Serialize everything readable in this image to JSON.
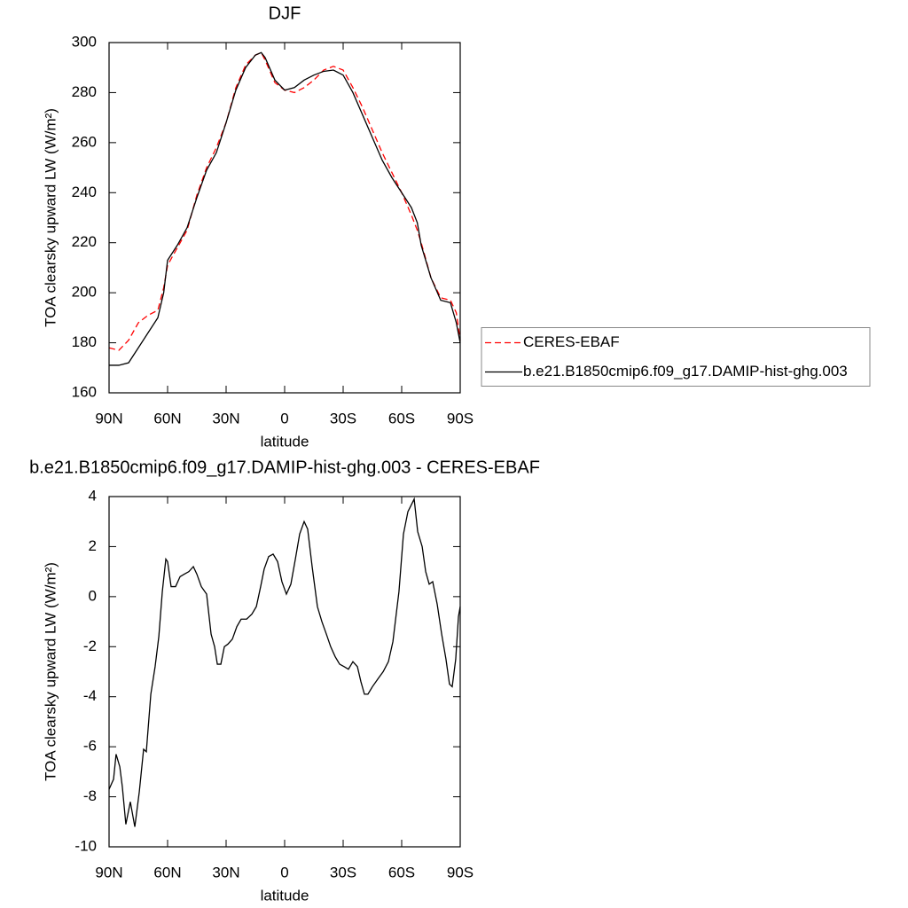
{
  "chart_data": [
    {
      "type": "line",
      "title": "DJF",
      "xlabel": "latitude",
      "ylabel": "TOA clearsky upward LW (W/m²)",
      "xlim": [
        90,
        -90
      ],
      "xticks": [
        {
          "value": 90,
          "label": "90N"
        },
        {
          "value": 60,
          "label": "60N"
        },
        {
          "value": 30,
          "label": "30N"
        },
        0,
        {
          "value": -30,
          "label": "30S"
        },
        {
          "value": -60,
          "label": "60S"
        },
        {
          "value": -90,
          "label": "90S"
        }
      ],
      "ylim": [
        160,
        300
      ],
      "yticks": [
        160,
        180,
        200,
        220,
        240,
        260,
        280,
        300
      ],
      "legend": "right",
      "x": [
        90,
        85,
        80,
        75,
        70,
        65,
        62,
        60,
        55,
        50,
        45,
        40,
        35,
        30,
        25,
        20,
        15,
        12,
        10,
        5,
        0,
        -5,
        -10,
        -15,
        -20,
        -25,
        -30,
        -35,
        -40,
        -45,
        -50,
        -55,
        -60,
        -65,
        -68,
        -70,
        -75,
        -80,
        -85,
        -88,
        -90
      ],
      "series": [
        {
          "name": "CERES-EBAF",
          "color": "#ff0000",
          "linestyle": "dashed",
          "values": [
            178,
            177,
            181,
            188,
            191,
            193,
            202,
            211,
            218,
            225,
            239,
            250,
            258,
            268,
            282,
            291,
            295,
            296,
            293,
            284,
            281,
            280,
            282,
            285,
            289,
            290.5,
            289,
            282,
            274,
            265,
            256,
            248,
            240,
            231,
            225,
            220,
            206,
            198,
            197,
            192,
            181
          ]
        },
        {
          "name": "b.e21.B1850cmip6.f09_g17.DAMIP-hist-ghg.003",
          "color": "#000000",
          "linestyle": "solid",
          "values": [
            171,
            171,
            172,
            178,
            184,
            190,
            200,
            213,
            219,
            226,
            238,
            249,
            256,
            268,
            281,
            290,
            295,
            296,
            294,
            285,
            281,
            282,
            285,
            287,
            288.5,
            289,
            287,
            280,
            271,
            262,
            253,
            246,
            240,
            234,
            228,
            219,
            206,
            197,
            196,
            188,
            180
          ]
        }
      ]
    },
    {
      "type": "line",
      "title": "b.e21.B1850cmip6.f09_g17.DAMIP-hist-ghg.003 - CERES-EBAF",
      "xlabel": "latitude",
      "ylabel": "TOA clearsky upward LW (W/m²)",
      "xlim": [
        90,
        -90
      ],
      "xticks": [
        {
          "value": 90,
          "label": "90N"
        },
        {
          "value": 60,
          "label": "60N"
        },
        {
          "value": 30,
          "label": "30N"
        },
        0,
        {
          "value": -30,
          "label": "30S"
        },
        {
          "value": -60,
          "label": "60S"
        },
        {
          "value": -90,
          "label": "90S"
        }
      ],
      "ylim": [
        -10,
        4
      ],
      "yticks": [
        -10,
        -8,
        -6,
        -4,
        -2,
        0,
        2,
        4
      ],
      "x": [
        90,
        87.7,
        86.4,
        84.5,
        83.2,
        81.4,
        79.1,
        76.8,
        74.5,
        72.3,
        70.9,
        68.6,
        66.4,
        64.5,
        62.7,
        60.9,
        60,
        58.2,
        55.9,
        53.6,
        51.4,
        49.1,
        46.8,
        45,
        42.7,
        40,
        37.7,
        35.9,
        34.5,
        32.7,
        30.9,
        29.1,
        26.8,
        24.5,
        22.3,
        19.5,
        16.8,
        14.5,
        12.3,
        10.5,
        8.2,
        5.9,
        3.6,
        1.4,
        -0.9,
        -3.2,
        -5.5,
        -7.7,
        -10,
        -11.8,
        -14.1,
        -16.8,
        -19.1,
        -21.4,
        -23.6,
        -25.9,
        -28.2,
        -30.5,
        -32.7,
        -35,
        -37.3,
        -39.1,
        -40.9,
        -42.7,
        -45,
        -47.7,
        -50.5,
        -53.2,
        -55.5,
        -58.6,
        -60.9,
        -63.2,
        -64.5,
        -66.4,
        -68.2,
        -70.5,
        -72.3,
        -74.1,
        -75.9,
        -78.2,
        -80.5,
        -82.7,
        -84.5,
        -85.9,
        -87.7,
        -89.1,
        -90
      ],
      "series": [
        {
          "color": "#000000",
          "linestyle": "solid",
          "values": [
            -7.7,
            -7.3,
            -6.3,
            -6.8,
            -7.6,
            -9.1,
            -8.2,
            -9.2,
            -7.8,
            -6.1,
            -6.2,
            -3.9,
            -2.8,
            -1.6,
            0.2,
            1.5,
            1.4,
            0.4,
            0.4,
            0.8,
            0.9,
            1.0,
            1.2,
            0.9,
            0.4,
            0.1,
            -1.5,
            -2.0,
            -2.7,
            -2.7,
            -2.0,
            -1.9,
            -1.7,
            -1.2,
            -0.9,
            -0.9,
            -0.7,
            -0.4,
            0.4,
            1.1,
            1.6,
            1.7,
            1.4,
            0.6,
            0.1,
            0.5,
            1.5,
            2.5,
            3.0,
            2.7,
            1.2,
            -0.4,
            -1.0,
            -1.5,
            -2.0,
            -2.4,
            -2.7,
            -2.8,
            -2.9,
            -2.6,
            -2.8,
            -3.4,
            -3.9,
            -3.9,
            -3.6,
            -3.3,
            -3.0,
            -2.6,
            -1.8,
            0.2,
            2.5,
            3.4,
            3.6,
            3.9,
            2.6,
            2.0,
            1.0,
            0.5,
            0.6,
            -0.3,
            -1.5,
            -2.5,
            -3.5,
            -3.6,
            -2.5,
            -0.8,
            -0.4
          ]
        }
      ]
    }
  ]
}
